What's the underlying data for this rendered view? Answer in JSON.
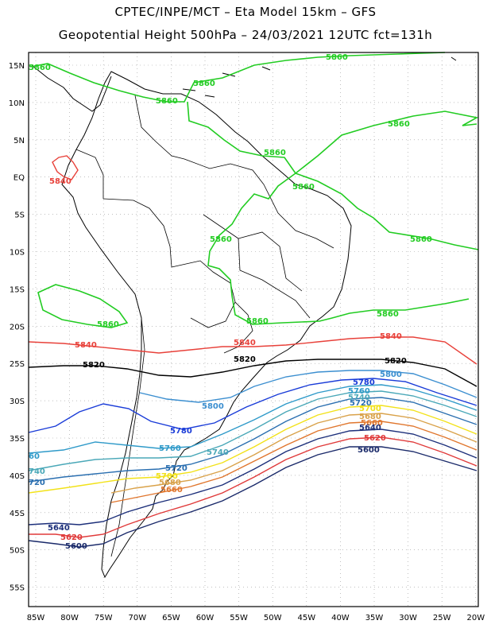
{
  "header": {
    "line1": "CPTEC/INPE/MCT –   Eta Model 15km – GFS",
    "line2": "Geopotential Height 500hPa – 24/03/2021 12UTC fct=131h"
  },
  "axes": {
    "lon_labels": [
      "85W",
      "80W",
      "75W",
      "70W",
      "65W",
      "60W",
      "55W",
      "50W",
      "45W",
      "40W",
      "35W",
      "30W",
      "25W",
      "20W"
    ],
    "lat_labels": [
      "15N",
      "10N",
      "5N",
      "EQ",
      "5S",
      "10S",
      "15S",
      "20S",
      "25S",
      "30S",
      "35S",
      "40S",
      "45S",
      "50S",
      "55S"
    ]
  },
  "colors": {
    "c5860": "#22cc22",
    "c5840": "#e8413a",
    "c5820": "#000000",
    "c5800": "#3c8fd0",
    "c5780": "#1a3cd8",
    "c5760": "#2f9ac9",
    "c5740": "#4aa8b8",
    "c5720": "#2b6fb0",
    "c5700": "#f2e21a",
    "c5680": "#d9a24a",
    "c5660": "#e0762d",
    "c5640": "#1c2f7a",
    "c5620": "#e03a3a",
    "c5600": "#1a2a6a"
  },
  "contour_labels": {
    "l5860a": "5860",
    "l5860b": "5860",
    "l5860c": "5860",
    "l5860d": "5860",
    "l5860e": "5860",
    "l5860f": "5860",
    "l5860g": "5860",
    "l5860h": "5860",
    "l5860i": "5860",
    "l5860j": "5860",
    "l5860k": "5860",
    "l5860l": "5860",
    "l5840a": "5840",
    "l5840b": "5840",
    "l5840c": "5840",
    "l5840d": "5840",
    "l5820a": "5820",
    "l5820b": "5820",
    "l5820c": "5820",
    "l5800a": "5800",
    "l5800b": "5800",
    "l5780a": "5780",
    "l5780b": "5780",
    "l5760a": "5760",
    "l5760b": "5760",
    "l5760c": "60",
    "l5740a": "5740",
    "l5740b": "5740",
    "l5740c": "740",
    "l5720a": "5720",
    "l5720b": "5720",
    "l5720c": "720",
    "l5700a": "5700",
    "l5700b": "5700",
    "l5680a": "5680",
    "l5680b": "5680",
    "l5660a": "5660",
    "l5660b": "5660",
    "l5640a": "5640",
    "l5640b": "5640",
    "l5620a": "5620",
    "l5620b": "5620",
    "l5600a": "5600",
    "l5600b": "5600"
  }
}
